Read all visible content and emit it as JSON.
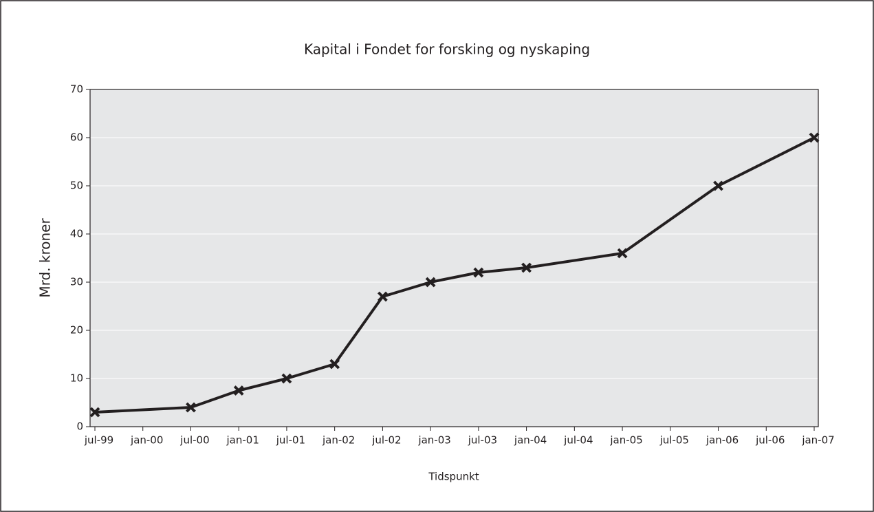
{
  "chart_data": {
    "type": "line",
    "title": "Kapital i Fondet for forsking og nyskaping",
    "x_label": "Tidspunkt",
    "y_label": "Mrd. kroner",
    "xticks": [
      "jul-99",
      "jan-00",
      "jul-00",
      "jan-01",
      "jul-01",
      "jan-02",
      "jul-02",
      "jan-03",
      "jul-03",
      "jan-04",
      "jul-04",
      "jan-05",
      "jul-05",
      "jan-06",
      "jul-06",
      "jan-07"
    ],
    "x": [
      "jul-99",
      "jul-00",
      "jan-01",
      "jul-01",
      "jan-02",
      "jul-02",
      "jan-03",
      "jul-03",
      "jan-04",
      "jan-05",
      "jan-06",
      "jan-07"
    ],
    "values": [
      3,
      4,
      7.5,
      10,
      13,
      27,
      30,
      32,
      33,
      36,
      50,
      60
    ],
    "color": "#231f20",
    "ylim": [
      0,
      70
    ],
    "yticks": [
      0,
      10,
      20,
      30,
      40,
      50,
      60,
      70
    ],
    "grid": true
  }
}
